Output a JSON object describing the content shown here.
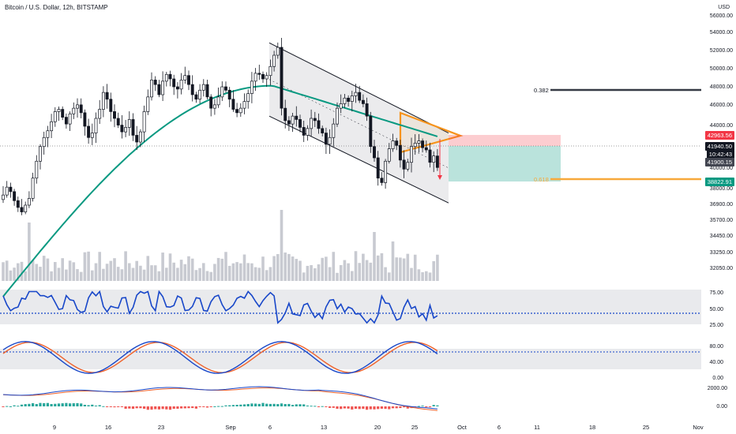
{
  "header": {
    "title": "Bitcoin / U.S. Dollar, 12h, BITSTAMP",
    "currency": "USD"
  },
  "price_tags": {
    "target_high": "42963.56",
    "last_price": "41940.50",
    "countdown": "10:42:43",
    "cursor_price": "41900.15",
    "target_low": "38822.91"
  },
  "fib_levels": [
    {
      "label": "0.382",
      "price": 47500,
      "color": "#363a45"
    },
    {
      "label": "0.618",
      "price": 38822.91,
      "color": "#f7a93b"
    }
  ],
  "colors": {
    "up": "#ffffff",
    "down": "#131722",
    "ma": "#089981",
    "channel": "#131722",
    "triangle": "#f7931a",
    "rsi": "#1847c9",
    "stoch_k": "#1847c9",
    "stoch_d": "#f0622a",
    "macd_up": "#26a69a",
    "macd_down": "#ef5350"
  },
  "chart_data": {
    "type": "candlestick",
    "title": "Bitcoin / U.S. Dollar, 12h, BITSTAMP",
    "y_axis_ticks": [
      "56000.00",
      "54000.00",
      "52000.00",
      "50000.00",
      "48000.00",
      "46000.00",
      "44000.00",
      "42000.00",
      "40000.00",
      "38000.00",
      "36900.00",
      "35700.00",
      "34450.00",
      "33250.00",
      "32050.00"
    ],
    "x_axis_ticks": [
      "9",
      "16",
      "23",
      "Sep",
      "6",
      "13",
      "20",
      "25",
      "Oct",
      "6",
      "11",
      "18",
      "25",
      "Nov"
    ],
    "close_prices": [
      39500,
      40200,
      39800,
      39000,
      38400,
      38000,
      38600,
      39200,
      41000,
      42500,
      43800,
      44600,
      45200,
      46000,
      46900,
      47100,
      46400,
      45800,
      46700,
      47200,
      47500,
      46800,
      45600,
      44600,
      45000,
      46300,
      47100,
      48600,
      48000,
      46900,
      46300,
      45700,
      45100,
      45500,
      46200,
      44800,
      44200,
      45100,
      46900,
      48200,
      49700,
      49300,
      48400,
      49600,
      50200,
      49800,
      49100,
      48900,
      49700,
      50100,
      49300,
      48400,
      48000,
      48800,
      49300,
      48200,
      47200,
      47500,
      48200,
      49100,
      48800,
      48000,
      47100,
      46800,
      47200,
      47800,
      48500,
      49600,
      50300,
      50200,
      49800,
      50100,
      50900,
      51900,
      52600,
      47200,
      46100,
      45800,
      46500,
      46200,
      45500,
      44800,
      45400,
      46300,
      46100,
      45400,
      45000,
      44000,
      44600,
      45800,
      47200,
      47600,
      48100,
      47800,
      48300,
      48600,
      47900,
      47600,
      46500,
      43800,
      42800,
      41000,
      40600,
      42500,
      43600,
      44300,
      43900,
      42600,
      41800,
      42400,
      43800,
      44100,
      44300,
      43700,
      43500,
      42400,
      42963.56,
      41940.5
    ],
    "moving_average": {
      "start": 30500,
      "end": 44700
    },
    "channel": {
      "upper": [
        53000,
        45000
      ],
      "lower": [
        46500,
        38800
      ]
    },
    "rsi": {
      "levels": [
        75,
        50,
        25
      ],
      "tick_labels": [
        "75.00",
        "50.00",
        "25.00"
      ],
      "last": 43
    },
    "stochastic": {
      "levels": [
        80,
        40,
        0
      ],
      "tick_labels": [
        "80.00",
        "40.00",
        "0.00"
      ]
    },
    "macd": {
      "tick_labels": [
        "2000.00",
        "0.00"
      ]
    }
  }
}
